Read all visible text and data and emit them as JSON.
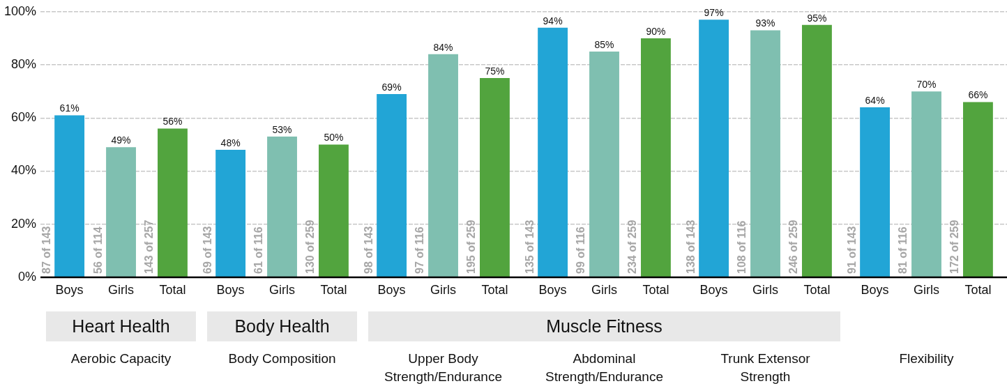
{
  "chart_data": {
    "type": "bar",
    "categories": [
      "Aerobic Capacity",
      "Body Composition",
      "Upper Body Strength/Endurance",
      "Abdominal Strength/Endurance",
      "Trunk Extensor Strength",
      "Flexibility"
    ],
    "series": [
      {
        "name": "Boys",
        "color": "#22a5d6",
        "values": [
          61,
          48,
          69,
          94,
          97,
          64
        ],
        "value_labels": [
          "61%",
          "48%",
          "69%",
          "94%",
          "97%",
          "64%"
        ]
      },
      {
        "name": "Girls",
        "color": "#7fbfb0",
        "values": [
          49,
          53,
          84,
          85,
          93,
          70
        ],
        "value_labels": [
          "49%",
          "53%",
          "84%",
          "85%",
          "93%",
          "70%"
        ]
      },
      {
        "name": "Total",
        "color": "#52a43e",
        "values": [
          56,
          50,
          75,
          90,
          95,
          66
        ],
        "value_labels": [
          "56%",
          "50%",
          "75%",
          "90%",
          "95%",
          "66%"
        ]
      }
    ],
    "ylim": [
      0,
      100
    ],
    "yticks": [
      {
        "value": 0,
        "label": "0%"
      },
      {
        "value": 20,
        "label": "20%"
      },
      {
        "value": 40,
        "label": "40%"
      },
      {
        "value": 60,
        "label": "60%"
      },
      {
        "value": 80,
        "label": "80%"
      },
      {
        "value": 100,
        "label": "100%"
      }
    ],
    "grid": "y",
    "legend": false,
    "annotations": [
      "87 of 143",
      "56 of 114",
      "143 of 257",
      "69 of 143",
      "61 of 116",
      "130 of 259",
      "98 of 143",
      "97 of 116",
      "195 of 259",
      "135 of 143",
      "99 of 116",
      "234 of 259",
      "138 of 143",
      "108 of 116",
      "246 of 259",
      "91 of 143",
      "81 of 116",
      "172 of 259",
      "Heart Health",
      "Body Health",
      "Muscle Fitness"
    ]
  }
}
